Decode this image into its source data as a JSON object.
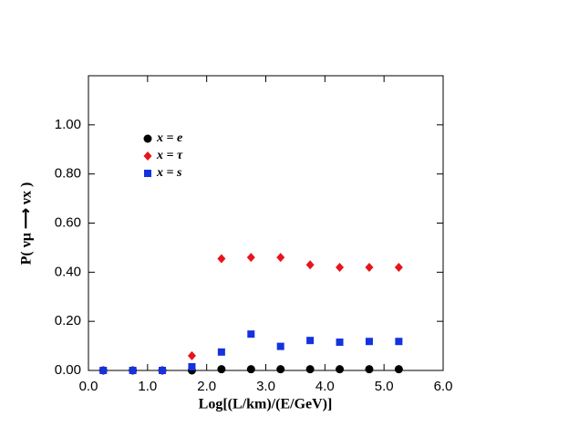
{
  "chart_data": {
    "type": "scatter",
    "xlabel": "Log[(L/km)/(E/GeV)]",
    "ylabel": "P( νμ ⟶ νx )",
    "x": [
      0.25,
      0.75,
      1.25,
      1.75,
      2.25,
      2.75,
      3.25,
      3.75,
      4.25,
      4.75,
      5.25
    ],
    "series": [
      {
        "name": "x = e",
        "color": "#000000",
        "marker": "circle",
        "values": [
          0,
          0,
          0,
          0,
          0.005,
          0.005,
          0.005,
          0.005,
          0.005,
          0.005,
          0.005
        ]
      },
      {
        "name": "x = τ",
        "color": "#e8141b",
        "marker": "diamond",
        "values": [
          0,
          0,
          0,
          0.06,
          0.455,
          0.46,
          0.46,
          0.43,
          0.42,
          0.42,
          0.42
        ]
      },
      {
        "name": "x = s",
        "color": "#1432e0",
        "marker": "square",
        "values": [
          0,
          0,
          0,
          0.015,
          0.075,
          0.148,
          0.098,
          0.122,
          0.115,
          0.118,
          0.118
        ]
      }
    ],
    "xlim": [
      0,
      6
    ],
    "xticks": [
      {
        "value": 0,
        "label": "0.0"
      },
      {
        "value": 1,
        "label": "1.0"
      },
      {
        "value": 2,
        "label": "2.0"
      },
      {
        "value": 3,
        "label": "3.0"
      },
      {
        "value": 4,
        "label": "4.0"
      },
      {
        "value": 5,
        "label": "5.0"
      },
      {
        "value": 6,
        "label": "6.0"
      }
    ],
    "ylim": [
      0,
      1.2
    ],
    "yticks": [
      {
        "value": 0,
        "label": "0.00"
      },
      {
        "value": 0.2,
        "label": "0.20"
      },
      {
        "value": 0.4,
        "label": "0.40"
      },
      {
        "value": 0.6,
        "label": "0.60"
      },
      {
        "value": 0.8,
        "label": "0.80"
      },
      {
        "value": 1,
        "label": "1.00"
      }
    ],
    "grid": false
  }
}
